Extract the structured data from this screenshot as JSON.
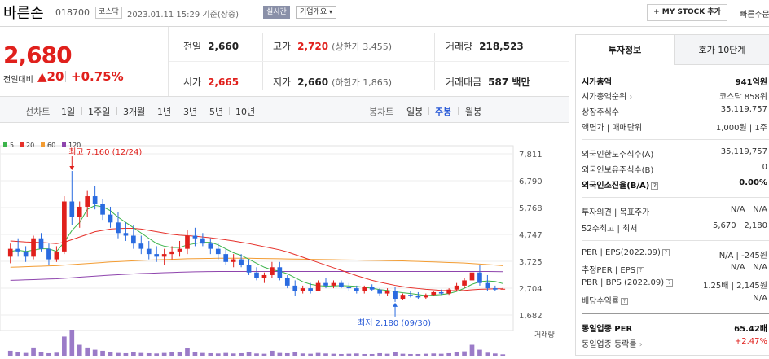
{
  "header": {
    "name": "바른손",
    "code": "018700",
    "market": "코스닥",
    "timestamp": "2023.01.11 15:29 기준(장중)",
    "realtime_label": "실시간",
    "corp_label": "기업개요",
    "mystock_label": "+ MY STOCK 추가",
    "quick_label": "빠른주문"
  },
  "price": {
    "current": "2,680",
    "change_label": "전일대비",
    "change": "▲20",
    "change_pct": "+0.75%"
  },
  "quotes": {
    "prev_close": {
      "label": "전일",
      "value": "2,660"
    },
    "high": {
      "label": "고가",
      "value": "2,720",
      "sub": "(상한가 3,455)"
    },
    "volume": {
      "label": "거래량",
      "value": "218,523"
    },
    "open": {
      "label": "시가",
      "value": "2,665"
    },
    "low": {
      "label": "저가",
      "value": "2,660",
      "sub": "(하한가 1,865)"
    },
    "amount": {
      "label": "거래대금",
      "value": "587 백만"
    }
  },
  "period_bar": {
    "line_label": "선차트",
    "line_periods": [
      "1일",
      "1주일",
      "3개월",
      "1년",
      "3년",
      "5년",
      "10년"
    ],
    "candle_label": "봉차트",
    "candle_periods": [
      "일봉",
      "주봉",
      "월봉"
    ],
    "active_candle": "주봉"
  },
  "chart_data": {
    "type": "line",
    "kind": "weekly-candlestick",
    "ma_legend": [
      {
        "name": "5",
        "color": "#3cb44b"
      },
      {
        "name": "20",
        "color": "#e6302a"
      },
      {
        "name": "60",
        "color": "#f39c32"
      },
      {
        "name": "120",
        "color": "#8e44ad"
      }
    ],
    "y_ticks": [
      "7,811",
      "6,790",
      "5,768",
      "4,747",
      "3,725",
      "2,704",
      "1,682"
    ],
    "y_tick_values": [
      7811,
      6790,
      5768,
      4747,
      3725,
      2704,
      1682
    ],
    "ylim": [
      1682,
      7811
    ],
    "high_annotation": "최고 7,160 (12/24)",
    "low_annotation": "최저 2,180 (09/30)",
    "volume_label": "거래량",
    "up_color": "#e0201c",
    "down_color": "#2a6be0",
    "candles": [
      [
        3900,
        4400,
        3650,
        4200
      ],
      [
        4200,
        4600,
        3900,
        4100
      ],
      [
        4100,
        4300,
        3700,
        3900
      ],
      [
        3900,
        4700,
        3800,
        4600
      ],
      [
        4600,
        4800,
        4100,
        4200
      ],
      [
        4200,
        4400,
        3600,
        3800
      ],
      [
        3800,
        4300,
        3700,
        4100
      ],
      [
        4100,
        6200,
        4000,
        6000
      ],
      [
        6000,
        7160,
        5100,
        5400
      ],
      [
        5400,
        6000,
        5000,
        5800
      ],
      [
        5800,
        6400,
        5400,
        6200
      ],
      [
        6200,
        6600,
        5700,
        5900
      ],
      [
        5900,
        6100,
        5300,
        5500
      ],
      [
        5500,
        5800,
        5000,
        5200
      ],
      [
        5200,
        5600,
        4600,
        4800
      ],
      [
        4800,
        5200,
        4500,
        4700
      ],
      [
        4700,
        5100,
        4200,
        4400
      ],
      [
        4400,
        4700,
        4000,
        4200
      ],
      [
        4200,
        4500,
        3800,
        4000
      ],
      [
        4000,
        4300,
        3700,
        3900
      ],
      [
        3900,
        4200,
        3600,
        4000
      ],
      [
        4000,
        4300,
        3800,
        4100
      ],
      [
        4100,
        4500,
        3900,
        4200
      ],
      [
        4200,
        4900,
        4000,
        4700
      ],
      [
        4700,
        5000,
        4300,
        4600
      ],
      [
        4600,
        4800,
        4300,
        4400
      ],
      [
        4400,
        4600,
        4000,
        4200
      ],
      [
        4200,
        4400,
        3800,
        4000
      ],
      [
        4000,
        4200,
        3600,
        3700
      ],
      [
        3700,
        4000,
        3500,
        3800
      ],
      [
        3800,
        4000,
        3500,
        3600
      ],
      [
        3600,
        3800,
        3200,
        3300
      ],
      [
        3300,
        3500,
        3000,
        3100
      ],
      [
        3100,
        3300,
        2900,
        3200
      ],
      [
        3200,
        3700,
        3100,
        3500
      ],
      [
        3500,
        3700,
        3000,
        3100
      ],
      [
        3100,
        3200,
        2700,
        2800
      ],
      [
        2800,
        3000,
        2400,
        2600
      ],
      [
        2600,
        2800,
        2500,
        2700
      ],
      [
        2700,
        2900,
        2500,
        2600
      ],
      [
        2600,
        3000,
        2600,
        2900
      ],
      [
        2900,
        3100,
        2700,
        2800
      ],
      [
        2800,
        3000,
        2700,
        2900
      ],
      [
        2900,
        3000,
        2700,
        2750
      ],
      [
        2750,
        2900,
        2600,
        2700
      ],
      [
        2700,
        2800,
        2500,
        2600
      ],
      [
        2600,
        2800,
        2500,
        2750
      ],
      [
        2750,
        2850,
        2600,
        2650
      ],
      [
        2650,
        2700,
        2400,
        2500
      ],
      [
        2500,
        2700,
        2400,
        2600
      ],
      [
        2600,
        2750,
        2180,
        2300
      ],
      [
        2300,
        2500,
        2250,
        2450
      ],
      [
        2450,
        2600,
        2350,
        2400
      ],
      [
        2400,
        2550,
        2300,
        2350
      ],
      [
        2350,
        2500,
        2300,
        2450
      ],
      [
        2450,
        2600,
        2400,
        2550
      ],
      [
        2550,
        2650,
        2450,
        2500
      ],
      [
        2500,
        2700,
        2450,
        2650
      ],
      [
        2650,
        2900,
        2600,
        2800
      ],
      [
        2800,
        3100,
        2700,
        3000
      ],
      [
        3000,
        3500,
        2900,
        3300
      ],
      [
        3300,
        3600,
        2800,
        2900
      ],
      [
        2900,
        3200,
        2600,
        2700
      ],
      [
        2700,
        2800,
        2600,
        2650
      ],
      [
        2660,
        2720,
        2660,
        2680
      ]
    ],
    "volumes": [
      18,
      12,
      10,
      30,
      14,
      9,
      11,
      70,
      95,
      40,
      30,
      22,
      18,
      12,
      10,
      9,
      12,
      10,
      9,
      8,
      10,
      12,
      14,
      28,
      14,
      10,
      9,
      8,
      10,
      8,
      9,
      12,
      8,
      7,
      18,
      10,
      9,
      12,
      8,
      7,
      10,
      8,
      7,
      6,
      7,
      8,
      6,
      6,
      9,
      7,
      14,
      7,
      6,
      6,
      7,
      8,
      7,
      9,
      12,
      16,
      40,
      22,
      11,
      8,
      5
    ],
    "ma5": [
      4100,
      4150,
      4100,
      4150,
      4200,
      4200,
      4100,
      4450,
      4900,
      5200,
      5700,
      5850,
      5800,
      5650,
      5400,
      5200,
      5000,
      4800,
      4600,
      4400,
      4300,
      4250,
      4250,
      4350,
      4400,
      4450,
      4450,
      4350,
      4200,
      4050,
      3950,
      3800,
      3650,
      3500,
      3400,
      3350,
      3250,
      3100,
      2950,
      2850,
      2800,
      2780,
      2790,
      2800,
      2790,
      2770,
      2740,
      2700,
      2650,
      2620,
      2570,
      2530,
      2500,
      2460,
      2420,
      2440,
      2460,
      2500,
      2580,
      2700,
      2850,
      2950,
      2980,
      2960,
      2880
    ],
    "ma20": [
      4500,
      4480,
      4460,
      4450,
      4440,
      4420,
      4400,
      4450,
      4550,
      4650,
      4750,
      4850,
      4900,
      4950,
      4970,
      4980,
      4980,
      4950,
      4900,
      4850,
      4800,
      4750,
      4720,
      4700,
      4680,
      4650,
      4620,
      4580,
      4540,
      4500,
      4450,
      4400,
      4340,
      4280,
      4220,
      4160,
      4080,
      3980,
      3880,
      3780,
      3680,
      3580,
      3480,
      3380,
      3280,
      3180,
      3090,
      3000,
      2930,
      2870,
      2810,
      2760,
      2720,
      2690,
      2660,
      2640,
      2620,
      2610,
      2610,
      2620,
      2640,
      2660,
      2670,
      2680,
      2680
    ],
    "ma60": [
      3500,
      3510,
      3520,
      3530,
      3540,
      3550,
      3560,
      3580,
      3600,
      3620,
      3640,
      3660,
      3680,
      3700,
      3715,
      3730,
      3745,
      3760,
      3770,
      3780,
      3790,
      3800,
      3810,
      3820,
      3825,
      3830,
      3835,
      3840,
      3840,
      3840,
      3840,
      3840,
      3835,
      3830,
      3825,
      3820,
      3815,
      3810,
      3805,
      3800,
      3795,
      3790,
      3785,
      3780,
      3775,
      3770,
      3765,
      3760,
      3755,
      3750,
      3745,
      3740,
      3730,
      3720,
      3710,
      3700,
      3690,
      3680,
      3670,
      3660,
      3640,
      3620,
      3600,
      3580,
      3560
    ],
    "ma120": [
      3000,
      3010,
      3020,
      3030,
      3040,
      3050,
      3060,
      3080,
      3100,
      3120,
      3140,
      3160,
      3180,
      3200,
      3215,
      3230,
      3245,
      3260,
      3270,
      3280,
      3290,
      3300,
      3310,
      3320,
      3325,
      3330,
      3335,
      3340,
      3340,
      3340,
      3340,
      3340,
      3340,
      3340,
      3340,
      3340,
      3340,
      3340,
      3340,
      3340,
      3340,
      3340,
      3340,
      3340,
      3340,
      3340,
      3340,
      3340,
      3340,
      3340,
      3340,
      3340,
      3340,
      3340,
      3340,
      3340,
      3340,
      3340,
      3340,
      3340,
      3340,
      3340,
      3340,
      3335,
      3330
    ]
  },
  "sidebar": {
    "tab_invest": "투자정보",
    "tab_orderbook": "호가 10단계",
    "market_cap": {
      "label": "시가총액",
      "value": "941억원"
    },
    "cap_rank": {
      "label": "시가총액순위",
      "value": "코스닥 858위"
    },
    "shares": {
      "label": "상장주식수",
      "value": "35,119,757"
    },
    "par": {
      "label": "액면가 | 매매단위",
      "value": "1,000원 | 1주"
    },
    "foreign_limit": {
      "label": "외국인한도주식수(A)",
      "value": "35,119,757"
    },
    "foreign_held": {
      "label": "외국인보유주식수(B)",
      "value": "0"
    },
    "foreign_ratio": {
      "label": "외국인소진율(B/A)",
      "value": "0.00%"
    },
    "opinion": {
      "label": "투자의견 | 목표주가",
      "value": "N/A | N/A"
    },
    "week52": {
      "label": "52주최고 | 최저",
      "value": "5,670 | 2,180"
    },
    "per": {
      "label": "PER | EPS(2022.09)",
      "value": "N/A | -245원"
    },
    "est_per": {
      "label": "추정PER | EPS",
      "value": "N/A | N/A"
    },
    "pbr": {
      "label": "PBR | BPS (2022.09)",
      "value": "1.25배 | 2,145원"
    },
    "div": {
      "label": "배당수익률",
      "value": "N/A"
    },
    "sector_per": {
      "label": "동일업종 PER",
      "value": "65.42배"
    },
    "sector_rate": {
      "label": "동일업종 등락률",
      "value": "+2.47%"
    }
  }
}
